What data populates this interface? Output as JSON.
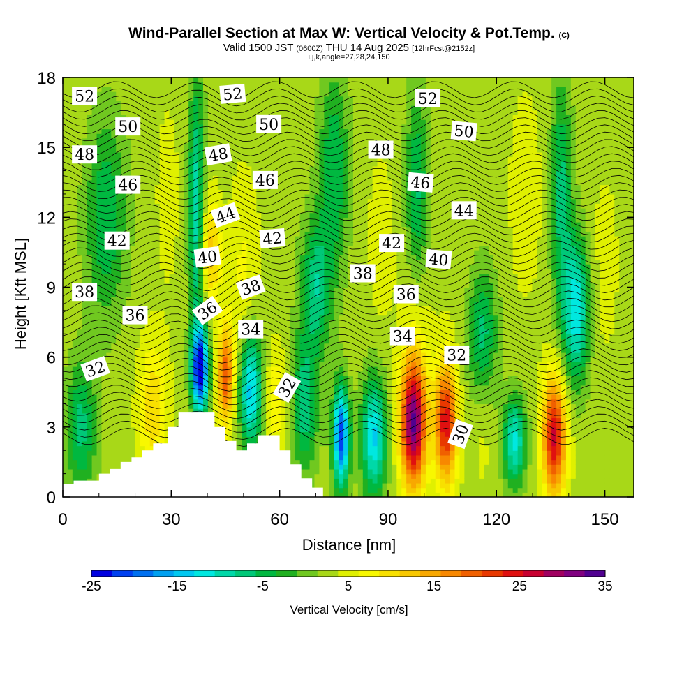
{
  "title": {
    "line1": "Wind-Parallel Section at Max W: Vertical Velocity & Pot.Temp.",
    "line1_mark": "(C)",
    "line2_valid": "Valid 1500 JST",
    "line2_z": "(0600Z)",
    "line2_date": "THU 14 Aug 2025",
    "line2_fcst": "[12hrFcst@2152z]",
    "line3": "i,j,k,angle=27,28,24,150"
  },
  "chart_data": {
    "type": "heatmap",
    "xlabel": "Distance [nm]",
    "ylabel": "Height [Kft MSL]",
    "xlim": [
      0,
      158
    ],
    "ylim": [
      0,
      18
    ],
    "xticks": [
      "0",
      "30",
      "60",
      "90",
      "120",
      "150"
    ],
    "xtick_values": [
      0,
      30,
      60,
      90,
      120,
      150
    ],
    "yticks": [
      "0",
      "3",
      "6",
      "9",
      "12",
      "15",
      "18"
    ],
    "ytick_values": [
      0,
      3,
      6,
      9,
      12,
      15,
      18
    ],
    "colorbar": {
      "label": "Vertical Velocity [cm/s]",
      "min": -25,
      "max": 35,
      "step": 2.5,
      "tick_labels": [
        "-25",
        "-15",
        "-5",
        "5",
        "15",
        "25",
        "35"
      ],
      "colors": [
        "#0000e0",
        "#0040f0",
        "#0070f0",
        "#00a0f0",
        "#00c8f0",
        "#00e8e0",
        "#00d8a8",
        "#00c878",
        "#00b840",
        "#20b020",
        "#70c820",
        "#a8d818",
        "#e0f000",
        "#f8f800",
        "#f8e000",
        "#f8c800",
        "#f8a800",
        "#f88800",
        "#f06000",
        "#e83800",
        "#e01010",
        "#c80030",
        "#a00060",
        "#800080",
        "#500090"
      ]
    },
    "terrain": [
      [
        0,
        0.55
      ],
      [
        3,
        0.55
      ],
      [
        3,
        0.7
      ],
      [
        10,
        0.7
      ],
      [
        10,
        1.0
      ],
      [
        13,
        1.0
      ],
      [
        13,
        1.2
      ],
      [
        16,
        1.2
      ],
      [
        16,
        1.5
      ],
      [
        19,
        1.5
      ],
      [
        19,
        1.7
      ],
      [
        22,
        1.7
      ],
      [
        22,
        2.0
      ],
      [
        25,
        2.0
      ],
      [
        25,
        2.3
      ],
      [
        29,
        2.3
      ],
      [
        29,
        3.0
      ],
      [
        32,
        3.0
      ],
      [
        32,
        3.65
      ],
      [
        42,
        3.65
      ],
      [
        42,
        3.0
      ],
      [
        45,
        3.0
      ],
      [
        45,
        2.4
      ],
      [
        48,
        2.4
      ],
      [
        48,
        2.0
      ],
      [
        51,
        2.0
      ],
      [
        51,
        2.3
      ],
      [
        54,
        2.3
      ],
      [
        54,
        2.65
      ],
      [
        60,
        2.65
      ],
      [
        60,
        2.0
      ],
      [
        63,
        2.0
      ],
      [
        63,
        1.4
      ],
      [
        66,
        1.4
      ],
      [
        66,
        0.8
      ],
      [
        69,
        0.8
      ],
      [
        69,
        0.4
      ],
      [
        72,
        0.4
      ],
      [
        72,
        0
      ],
      [
        158,
        0
      ]
    ],
    "w_cells": [
      {
        "x": 38,
        "z": 5.5,
        "w": -25,
        "sx": 1.6,
        "sz": 1.3
      },
      {
        "x": 45,
        "z": 5.2,
        "w": 22,
        "sx": 1.6,
        "sz": 1.5
      },
      {
        "x": 52,
        "z": 4.6,
        "w": -14,
        "sx": 2.2,
        "sz": 1.8
      },
      {
        "x": 59,
        "z": 4.2,
        "w": 10,
        "sx": 2.0,
        "sz": 1.5
      },
      {
        "x": 25,
        "z": 3.8,
        "w": 12,
        "sx": 2.8,
        "sz": 2.0
      },
      {
        "x": 77,
        "z": 2.6,
        "w": -22,
        "sx": 1.6,
        "sz": 1.5
      },
      {
        "x": 86,
        "z": 2.6,
        "w": -13,
        "sx": 2.4,
        "sz": 1.8
      },
      {
        "x": 97,
        "z": 3.2,
        "w": 35,
        "sx": 2.4,
        "sz": 1.9
      },
      {
        "x": 106,
        "z": 3.2,
        "w": 27,
        "sx": 2.2,
        "sz": 1.8
      },
      {
        "x": 125,
        "z": 2.4,
        "w": -11,
        "sx": 2.2,
        "sz": 1.3
      },
      {
        "x": 136,
        "z": 2.6,
        "w": 28,
        "sx": 2.3,
        "sz": 1.8
      },
      {
        "x": 41,
        "z": 10.5,
        "w": 14,
        "sx": 1.8,
        "sz": 1.6
      },
      {
        "x": 37,
        "z": 12.5,
        "w": -9,
        "sx": 1.5,
        "sz": 4.0
      },
      {
        "x": 50,
        "z": 9.5,
        "w": 8,
        "sx": 3.0,
        "sz": 3.0
      },
      {
        "x": 29,
        "z": 13,
        "w": 6,
        "sx": 2.5,
        "sz": 3.0
      },
      {
        "x": 70,
        "z": 9,
        "w": -7,
        "sx": 3.0,
        "sz": 2.0
      },
      {
        "x": 75,
        "z": 14,
        "w": -5,
        "sx": 3.0,
        "sz": 3.0
      },
      {
        "x": 98,
        "z": 8,
        "w": 7,
        "sx": 3.0,
        "sz": 3.0
      },
      {
        "x": 98,
        "z": 13,
        "w": -6,
        "sx": 2.2,
        "sz": 3.0
      },
      {
        "x": 88,
        "z": 11,
        "w": 6,
        "sx": 3.0,
        "sz": 3.0
      },
      {
        "x": 110,
        "z": 11,
        "w": 5,
        "sx": 3.0,
        "sz": 3.0
      },
      {
        "x": 116,
        "z": 7,
        "w": -6,
        "sx": 3.0,
        "sz": 2.0
      },
      {
        "x": 128,
        "z": 13,
        "w": 7,
        "sx": 3.0,
        "sz": 3.0
      },
      {
        "x": 142,
        "z": 8,
        "w": -12,
        "sx": 2.5,
        "sz": 2.2
      },
      {
        "x": 138,
        "z": 13,
        "w": -6,
        "sx": 2.0,
        "sz": 3.5
      },
      {
        "x": 150,
        "z": 10,
        "w": 6,
        "sx": 3.0,
        "sz": 3.0
      },
      {
        "x": 12,
        "z": 12,
        "w": -5,
        "sx": 4.0,
        "sz": 3.0
      },
      {
        "x": 5,
        "z": 3,
        "w": -6,
        "sx": 3.0,
        "sz": 2.0
      },
      {
        "x": 67,
        "z": 4,
        "w": -7,
        "sx": 2.5,
        "sz": 2.0
      },
      {
        "x": 116,
        "z": 3,
        "w": 6,
        "sx": 2.0,
        "sz": 2.0
      }
    ],
    "theta_labels": [
      {
        "text": "52",
        "x": 6,
        "z": 17.2,
        "rot": 0
      },
      {
        "text": "52",
        "x": 47,
        "z": 17.3,
        "rot": -5
      },
      {
        "text": "52",
        "x": 101,
        "z": 17.1,
        "rot": 0
      },
      {
        "text": "50",
        "x": 18,
        "z": 15.9,
        "rot": 0
      },
      {
        "text": "50",
        "x": 57,
        "z": 16.0,
        "rot": 0
      },
      {
        "text": "50",
        "x": 111,
        "z": 15.7,
        "rot": 5
      },
      {
        "text": "48",
        "x": 6,
        "z": 14.7,
        "rot": 0
      },
      {
        "text": "48",
        "x": 43,
        "z": 14.7,
        "rot": -10
      },
      {
        "text": "48",
        "x": 88,
        "z": 14.9,
        "rot": 0
      },
      {
        "text": "46",
        "x": 18,
        "z": 13.4,
        "rot": 0
      },
      {
        "text": "46",
        "x": 56,
        "z": 13.6,
        "rot": 0
      },
      {
        "text": "46",
        "x": 99,
        "z": 13.5,
        "rot": 5
      },
      {
        "text": "44",
        "x": 45,
        "z": 12.1,
        "rot": -20
      },
      {
        "text": "44",
        "x": 111,
        "z": 12.3,
        "rot": 0
      },
      {
        "text": "42",
        "x": 15,
        "z": 11.0,
        "rot": 0
      },
      {
        "text": "42",
        "x": 58,
        "z": 11.1,
        "rot": -5
      },
      {
        "text": "42",
        "x": 91,
        "z": 10.9,
        "rot": 0
      },
      {
        "text": "40",
        "x": 40,
        "z": 10.3,
        "rot": -8
      },
      {
        "text": "40",
        "x": 104,
        "z": 10.2,
        "rot": 5
      },
      {
        "text": "38",
        "x": 6,
        "z": 8.8,
        "rot": 0
      },
      {
        "text": "38",
        "x": 52,
        "z": 9.0,
        "rot": -20
      },
      {
        "text": "38",
        "x": 83,
        "z": 9.6,
        "rot": 0
      },
      {
        "text": "36",
        "x": 20,
        "z": 7.8,
        "rot": 0
      },
      {
        "text": "36",
        "x": 40,
        "z": 8.0,
        "rot": -35
      },
      {
        "text": "36",
        "x": 95,
        "z": 8.7,
        "rot": 0
      },
      {
        "text": "34",
        "x": 52,
        "z": 7.2,
        "rot": 0
      },
      {
        "text": "34",
        "x": 94,
        "z": 6.9,
        "rot": 0
      },
      {
        "text": "32",
        "x": 9,
        "z": 5.5,
        "rot": -20
      },
      {
        "text": "32",
        "x": 109,
        "z": 6.1,
        "rot": 0
      },
      {
        "text": "32",
        "x": 62,
        "z": 4.7,
        "rot": -60
      },
      {
        "text": "30",
        "x": 110,
        "z": 2.7,
        "rot": -70
      }
    ]
  }
}
